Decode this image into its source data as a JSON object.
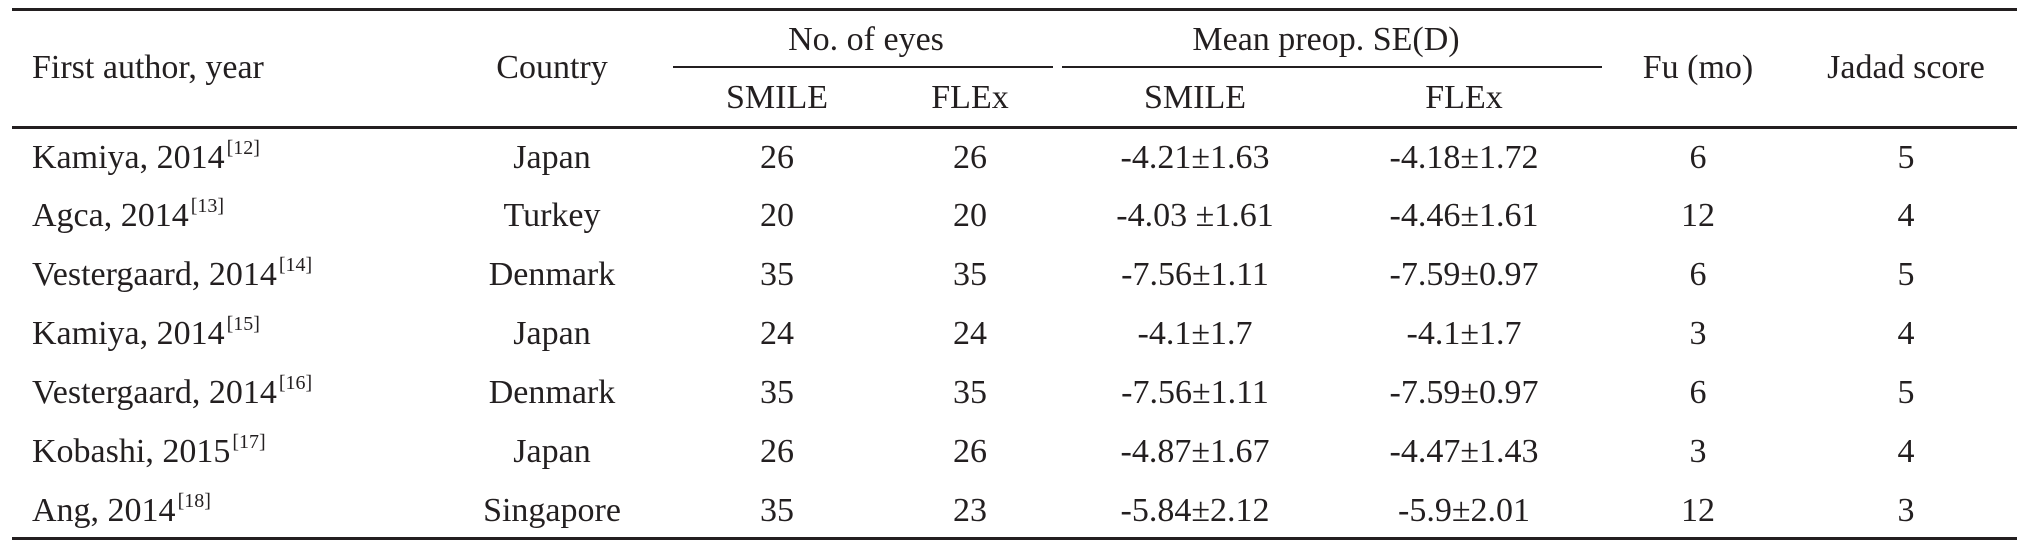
{
  "table": {
    "header": {
      "first_author": "First author, year",
      "country": "Country",
      "eyes_group": "No. of eyes",
      "mean_group": "Mean preop. SE(D)",
      "eyes_smile": "SMILE",
      "eyes_flex": "FLEx",
      "mean_smile": "SMILE",
      "mean_flex": "FLEx",
      "fu": "Fu (mo)",
      "jadad": "Jadad score"
    },
    "rows": [
      {
        "author": "Kamiya, 2014",
        "ref": "[12]",
        "country": "Japan",
        "eyes_smile": "26",
        "eyes_flex": "26",
        "mean_smile": "-4.21±1.63",
        "mean_flex": "-4.18±1.72",
        "fu": "6",
        "jadad": "5"
      },
      {
        "author": "Agca, 2014",
        "ref": "[13]",
        "country": "Turkey",
        "eyes_smile": "20",
        "eyes_flex": "20",
        "mean_smile": "-4.03 ±1.61",
        "mean_flex": "-4.46±1.61",
        "fu": "12",
        "jadad": "4"
      },
      {
        "author": "Vestergaard, 2014",
        "ref": "[14]",
        "country": "Denmark",
        "eyes_smile": "35",
        "eyes_flex": "35",
        "mean_smile": "-7.56±1.11",
        "mean_flex": "-7.59±0.97",
        "fu": "6",
        "jadad": "5"
      },
      {
        "author": "Kamiya, 2014",
        "ref": "[15]",
        "country": "Japan",
        "eyes_smile": "24",
        "eyes_flex": "24",
        "mean_smile": "-4.1±1.7",
        "mean_flex": "-4.1±1.7",
        "fu": "3",
        "jadad": "4"
      },
      {
        "author": "Vestergaard, 2014",
        "ref": "[16]",
        "country": "Denmark",
        "eyes_smile": "35",
        "eyes_flex": "35",
        "mean_smile": "-7.56±1.11",
        "mean_flex": "-7.59±0.97",
        "fu": "6",
        "jadad": "5"
      },
      {
        "author": "Kobashi, 2015",
        "ref": "[17]",
        "country": "Japan",
        "eyes_smile": "26",
        "eyes_flex": "26",
        "mean_smile": "-4.87±1.67",
        "mean_flex": "-4.47±1.43",
        "fu": "3",
        "jadad": "4"
      },
      {
        "author": "Ang, 2014",
        "ref": "[18]",
        "country": "Singapore",
        "eyes_smile": "35",
        "eyes_flex": "23",
        "mean_smile": "-5.84±2.12",
        "mean_flex": "-5.9±2.01",
        "fu": "12",
        "jadad": "3"
      }
    ]
  }
}
